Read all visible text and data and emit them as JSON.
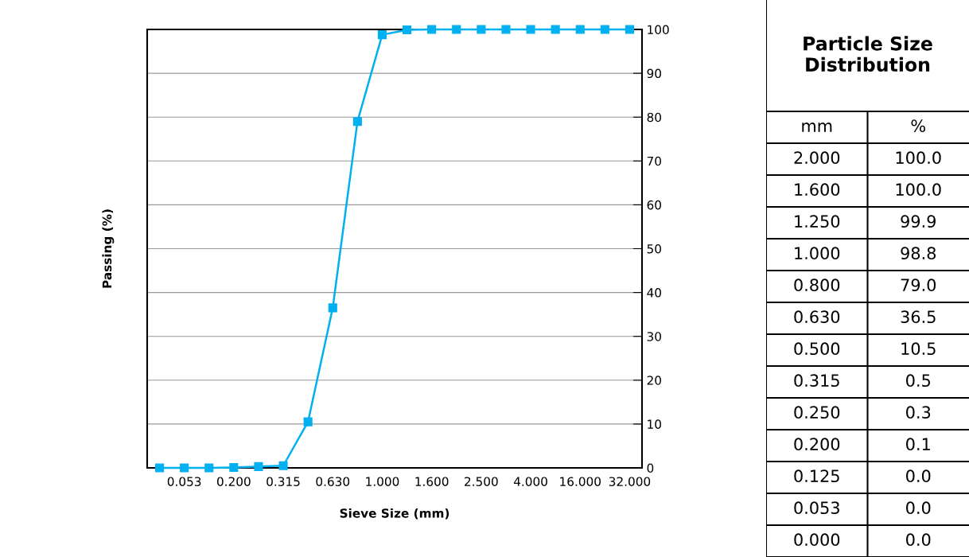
{
  "chart_data": [
    {
      "type": "line",
      "xlabel": "Sieve Size (mm)",
      "ylabel": "Passing (%)",
      "categories": [
        null,
        "0.053",
        null,
        "0.200",
        null,
        "0.315",
        null,
        "0.630",
        null,
        "1.000",
        null,
        "1.600",
        null,
        "2.500",
        null,
        "4.000",
        null,
        "16.000",
        null,
        "32.000"
      ],
      "series": [
        {
          "color": "#00b0f0",
          "values": [
            0,
            0,
            0,
            0.1,
            0.3,
            0.5,
            10.5,
            36.5,
            79.0,
            98.8,
            99.9,
            100,
            100,
            100,
            100,
            100,
            100,
            100,
            100,
            100
          ]
        }
      ],
      "ylim": [
        0,
        100
      ],
      "yticks": [
        0,
        10,
        20,
        30,
        40,
        50,
        60,
        70,
        80,
        90,
        100
      ],
      "grid": "y",
      "marker": "square",
      "line_style": "solid"
    },
    {
      "type": "other",
      "title": "Particle Size Distribution",
      "annotations": [
        "mm",
        "%"
      ],
      "categories": [
        "2.000",
        "1.600",
        "1.250",
        "1.000",
        "0.800",
        "0.630",
        "0.500",
        "0.315",
        "0.250",
        "0.200",
        "0.125",
        "0.053",
        "0.000"
      ],
      "value_labels": [
        "100.0",
        "100.0",
        "99.9",
        "98.8",
        "79.0",
        "36.5",
        "10.5",
        "0.5",
        "0.3",
        "0.1",
        "0.0",
        "0.0",
        "0.0"
      ]
    }
  ]
}
